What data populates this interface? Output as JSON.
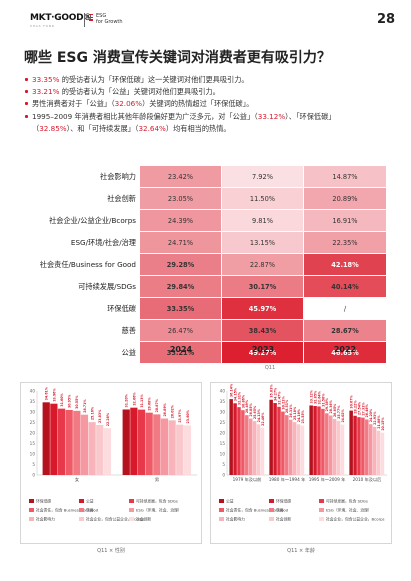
{
  "header": {
    "logo_text": "MKT·GOOD®",
    "logo_sub": "SHAS FOND",
    "esg_line1": "ESG",
    "esg_line2": "for Growth",
    "page_number": "28"
  },
  "title": "哪些 ESG 消费宣传关键词对消费者更有吸引力？",
  "bullets": [
    {
      "pre": "",
      "pct": "33.35%",
      "post": " 的受访者认为「环保低碳」这一关键词对他们更具吸引力。"
    },
    {
      "pre": "",
      "pct": "33.21%",
      "post": " 的受访者认为「公益」关键词对他们更具吸引力。"
    },
    {
      "pre": "男性消费者对于「公益」（",
      "pct": "32.06%",
      "post": "）关键词的热情超过「环保低碳」。"
    }
  ],
  "bullet4": {
    "line1": "1995–2009 年消费者相比其他年龄段偏好更为广泛多元，对「公益」（",
    "p1": "33.12%",
    "mid1": "）、「环保低碳」",
    "line2a": "（",
    "p2": "32.85%",
    "mid2": "）、和「可持续发展」（",
    "p3": "32.64%",
    "end": "）均有相当的热情。"
  },
  "heatmap_caption": "Q11",
  "left_caption": "Q11 × 性别",
  "right_caption": "Q11 × 年龄",
  "colors": {
    "accent": "#d8192b"
  },
  "chart_data": [
    {
      "type": "heatmap",
      "rows": [
        "社会影响力",
        "社会创新",
        "社会企业/公益企业/Bcorps",
        "ESG/环境/社会/治理",
        "社会责任/Business for Good",
        "可持续发展/SDGs",
        "环保低碳",
        "慈善",
        "公益"
      ],
      "columns": [
        "2024",
        "2023",
        "2022"
      ],
      "values": [
        [
          "23.42%",
          "7.92%",
          "14.87%"
        ],
        [
          "23.05%",
          "11.50%",
          "20.89%"
        ],
        [
          "24.39%",
          "9.81%",
          "16.91%"
        ],
        [
          "24.71%",
          "13.15%",
          "22.35%"
        ],
        [
          "29.28%",
          "22.87%",
          "42.18%"
        ],
        [
          "29.84%",
          "30.17%",
          "40.14%"
        ],
        [
          "33.35%",
          "45.97%",
          "/"
        ],
        [
          "26.47%",
          "38.43%",
          "28.67%"
        ],
        [
          "33.21%",
          "49.27%",
          "46.65%"
        ]
      ],
      "bold": [
        [
          false,
          false,
          false
        ],
        [
          false,
          false,
          false
        ],
        [
          false,
          false,
          false
        ],
        [
          false,
          false,
          false
        ],
        [
          true,
          false,
          true
        ],
        [
          true,
          true,
          true
        ],
        [
          true,
          true,
          false
        ],
        [
          false,
          true,
          true
        ],
        [
          true,
          true,
          true
        ]
      ]
    },
    {
      "type": "bar",
      "categories": [
        "女",
        "男"
      ],
      "series": [
        {
          "name": "环保低碳",
          "color": "#b4121f",
          "values": [
            34.61,
            31.2
          ]
        },
        {
          "name": "公益",
          "color": "#d8192b",
          "values": [
            33.96,
            32.06
          ]
        },
        {
          "name": "可持续发展，包含 SDGs",
          "color": "#e8394a",
          "values": [
            31.6,
            31.13
          ]
        },
        {
          "name": "社会责任，包含 Business for Good",
          "color": "#ef5a66",
          "values": [
            30.95,
            29.68
          ]
        },
        {
          "name": "慈善",
          "color": "#f27a85",
          "values": [
            30.55,
            28.87
          ]
        },
        {
          "name": "ESG（环境、社会、治理）",
          "color": "#f598a0",
          "values": [
            28.71,
            26.89
          ]
        },
        {
          "name": "社会影响力",
          "color": "#f8b4ba",
          "values": [
            25.16,
            26.02
          ]
        },
        {
          "name": "社会企业，包含公益企业，Bcorps",
          "color": "#fac9cd",
          "values": [
            23.83,
            23.97
          ]
        },
        {
          "name": "社会创新",
          "color": "#fcdcdf",
          "values": [
            22.28,
            23.6
          ]
        }
      ],
      "ylim": [
        0,
        40
      ],
      "yticks": [
        "0",
        "5",
        "10",
        "15",
        "20",
        "25",
        "30",
        "35",
        "40"
      ]
    },
    {
      "type": "bar",
      "categories": [
        "1979 年及以前",
        "1980 年～1994 年",
        "1995 年～2009 年",
        "2010 年及以后"
      ],
      "series": [
        {
          "name": "公益",
          "color": "#b4121f",
          "values": [
            36.14,
            35.83,
            33.12,
            30.67
          ]
        },
        {
          "name": "环保低碳",
          "color": "#d8192b",
          "values": [
            34.15,
            34.27,
            32.85,
            28.22
          ]
        },
        {
          "name": "可持续发展，包含 SDGs",
          "color": "#e8394a",
          "values": [
            32.31,
            32.47,
            32.64,
            27.54
          ]
        },
        {
          "name": "社会责任，包含 Business for Good",
          "color": "#ef5a66",
          "values": [
            30.86,
            30.21,
            31.5,
            27.31
          ]
        },
        {
          "name": "慈善",
          "color": "#f27a85",
          "values": [
            28.49,
            28.51,
            29.38,
            26.46
          ]
        },
        {
          "name": "ESG（环境、社会、治理）",
          "color": "#f598a0",
          "values": [
            26.85,
            26.31,
            28.36,
            24.2
          ]
        },
        {
          "name": "社会影响力",
          "color": "#f8b4ba",
          "values": [
            25.65,
            25.18,
            26.65,
            22.93
          ]
        },
        {
          "name": "社会创新",
          "color": "#fac9cd",
          "values": [
            24.13,
            24.16,
            25.77,
            21.08
          ]
        },
        {
          "name": "社会企业，包含公益企业，Bcorps",
          "color": "#fcdcdf",
          "values": [
            22.46,
            23.55,
            24.02,
            20.15
          ]
        }
      ],
      "ylim": [
        0,
        40
      ],
      "yticks": [
        "0",
        "5",
        "10",
        "15",
        "20",
        "25",
        "30",
        "35",
        "40"
      ]
    }
  ]
}
